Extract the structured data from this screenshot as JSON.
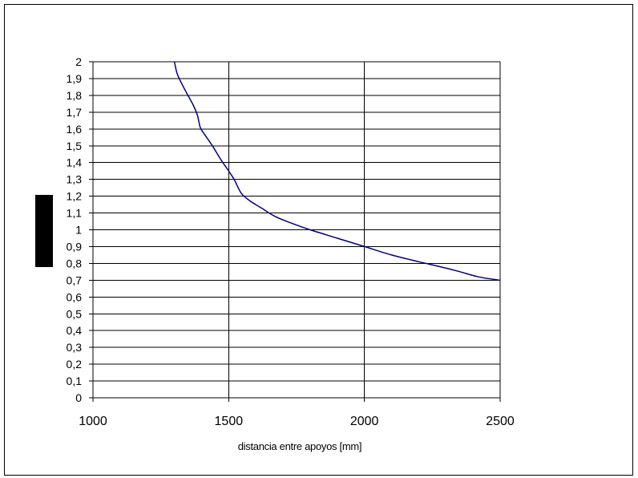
{
  "chart_data": {
    "type": "line",
    "title": "",
    "xlabel": "distancia entre apoyos [mm]",
    "ylabel": "",
    "xlim": [
      1000,
      2500
    ],
    "ylim": [
      0,
      2
    ],
    "x_ticks": [
      "1000",
      "1500",
      "2000",
      "2500"
    ],
    "y_ticks": [
      "0",
      "0,1",
      "0,2",
      "0,3",
      "0,4",
      "0,5",
      "0,6",
      "0,7",
      "0,8",
      "0,9",
      "1",
      "1,1",
      "1,2",
      "1,3",
      "1,4",
      "1,5",
      "1,6",
      "1,7",
      "1,8",
      "1,9",
      "2"
    ],
    "grid": {
      "horizontal": true,
      "vertical": true
    },
    "legend": "none",
    "series": [
      {
        "color": "#000080",
        "x": [
          1300,
          1310,
          1330,
          1350,
          1370,
          1385,
          1395,
          1410,
          1440,
          1470,
          1500,
          1520,
          1535,
          1550,
          1580,
          1620,
          1670,
          1730,
          1800,
          1900,
          2000,
          2100,
          2200,
          2330,
          2420,
          2500
        ],
        "y": [
          2.0,
          1.93,
          1.86,
          1.8,
          1.74,
          1.68,
          1.61,
          1.57,
          1.5,
          1.42,
          1.35,
          1.3,
          1.25,
          1.21,
          1.17,
          1.13,
          1.08,
          1.04,
          1.0,
          0.95,
          0.9,
          0.85,
          0.81,
          0.76,
          0.72,
          0.7
        ]
      }
    ]
  }
}
